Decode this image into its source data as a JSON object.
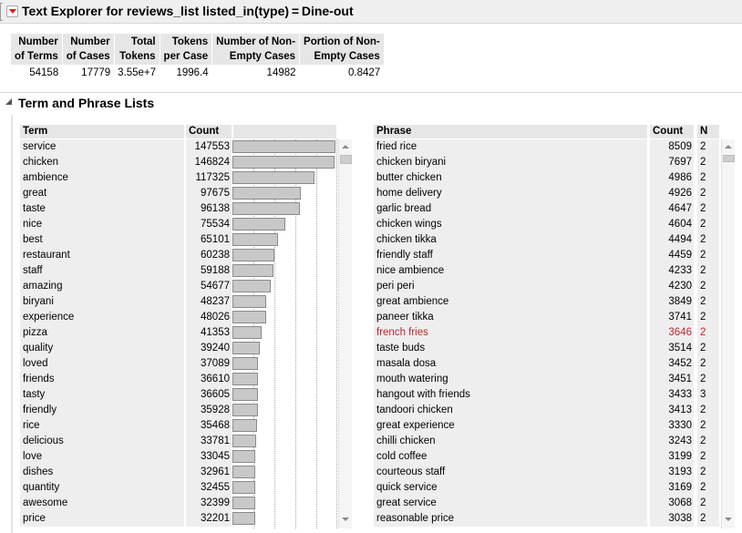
{
  "window": {
    "title": "Text Explorer for reviews_list listed_in(type) = Dine-out"
  },
  "summary": {
    "headers": [
      [
        "Number",
        "of Terms"
      ],
      [
        "Number",
        "of Cases"
      ],
      [
        "Total",
        "Tokens"
      ],
      [
        "Tokens",
        "per Case"
      ],
      [
        "Number of Non-",
        "Empty Cases"
      ],
      [
        "Portion of Non-",
        "Empty Cases"
      ]
    ],
    "values": [
      "54158",
      "17779",
      "3.55e+7",
      "1996.4",
      "14982",
      "0.8427"
    ]
  },
  "section": {
    "title": "Term and Phrase Lists"
  },
  "term_list": {
    "headers": {
      "term": "Term",
      "count": "Count"
    },
    "rows": [
      {
        "term": "service",
        "count": "147553"
      },
      {
        "term": "chicken",
        "count": "146824"
      },
      {
        "term": "ambience",
        "count": "117325"
      },
      {
        "term": "great",
        "count": "97675"
      },
      {
        "term": "taste",
        "count": "96138"
      },
      {
        "term": "nice",
        "count": "75534"
      },
      {
        "term": "best",
        "count": "65101"
      },
      {
        "term": "restaurant",
        "count": "60238"
      },
      {
        "term": "staff",
        "count": "59188"
      },
      {
        "term": "amazing",
        "count": "54677"
      },
      {
        "term": "biryani",
        "count": "48237"
      },
      {
        "term": "experience",
        "count": "48026"
      },
      {
        "term": "pizza",
        "count": "41353"
      },
      {
        "term": "quality",
        "count": "39240"
      },
      {
        "term": "loved",
        "count": "37089"
      },
      {
        "term": "friends",
        "count": "36610"
      },
      {
        "term": "tasty",
        "count": "36605"
      },
      {
        "term": "friendly",
        "count": "35928"
      },
      {
        "term": "rice",
        "count": "35468"
      },
      {
        "term": "delicious",
        "count": "33781"
      },
      {
        "term": "love",
        "count": "33045"
      },
      {
        "term": "dishes",
        "count": "32961"
      },
      {
        "term": "quantity",
        "count": "32455"
      },
      {
        "term": "awesome",
        "count": "32399"
      },
      {
        "term": "price",
        "count": "32201"
      }
    ],
    "bar_max": 147553
  },
  "phrase_list": {
    "headers": {
      "phrase": "Phrase",
      "count": "Count",
      "n": "N"
    },
    "highlighted_row": 12,
    "rows": [
      {
        "phrase": "fried rice",
        "count": "8509",
        "n": "2"
      },
      {
        "phrase": "chicken biryani",
        "count": "7697",
        "n": "2"
      },
      {
        "phrase": "butter chicken",
        "count": "4986",
        "n": "2"
      },
      {
        "phrase": "home delivery",
        "count": "4926",
        "n": "2"
      },
      {
        "phrase": "garlic bread",
        "count": "4647",
        "n": "2"
      },
      {
        "phrase": "chicken wings",
        "count": "4604",
        "n": "2"
      },
      {
        "phrase": "chicken tikka",
        "count": "4494",
        "n": "2"
      },
      {
        "phrase": "friendly staff",
        "count": "4459",
        "n": "2"
      },
      {
        "phrase": "nice ambience",
        "count": "4233",
        "n": "2"
      },
      {
        "phrase": "peri peri",
        "count": "4230",
        "n": "2"
      },
      {
        "phrase": "great ambience",
        "count": "3849",
        "n": "2"
      },
      {
        "phrase": "paneer tikka",
        "count": "3741",
        "n": "2"
      },
      {
        "phrase": "french fries",
        "count": "3646",
        "n": "2"
      },
      {
        "phrase": "taste buds",
        "count": "3514",
        "n": "2"
      },
      {
        "phrase": "masala dosa",
        "count": "3452",
        "n": "2"
      },
      {
        "phrase": "mouth watering",
        "count": "3451",
        "n": "2"
      },
      {
        "phrase": "hangout with friends",
        "count": "3433",
        "n": "3"
      },
      {
        "phrase": "tandoori chicken",
        "count": "3413",
        "n": "2"
      },
      {
        "phrase": "great experience",
        "count": "3330",
        "n": "2"
      },
      {
        "phrase": "chilli chicken",
        "count": "3243",
        "n": "2"
      },
      {
        "phrase": "cold coffee",
        "count": "3199",
        "n": "2"
      },
      {
        "phrase": "courteous staff",
        "count": "3193",
        "n": "2"
      },
      {
        "phrase": "quick service",
        "count": "3169",
        "n": "2"
      },
      {
        "phrase": "great service",
        "count": "3068",
        "n": "2"
      },
      {
        "phrase": "reasonable price",
        "count": "3038",
        "n": "2"
      }
    ]
  },
  "icons": {
    "hotspot": "red-triangle-menu-icon",
    "disclosure": "disclosure-triangle-icon"
  },
  "colors": {
    "highlight": "#c0262d",
    "hotspot": "#d41e1e"
  }
}
